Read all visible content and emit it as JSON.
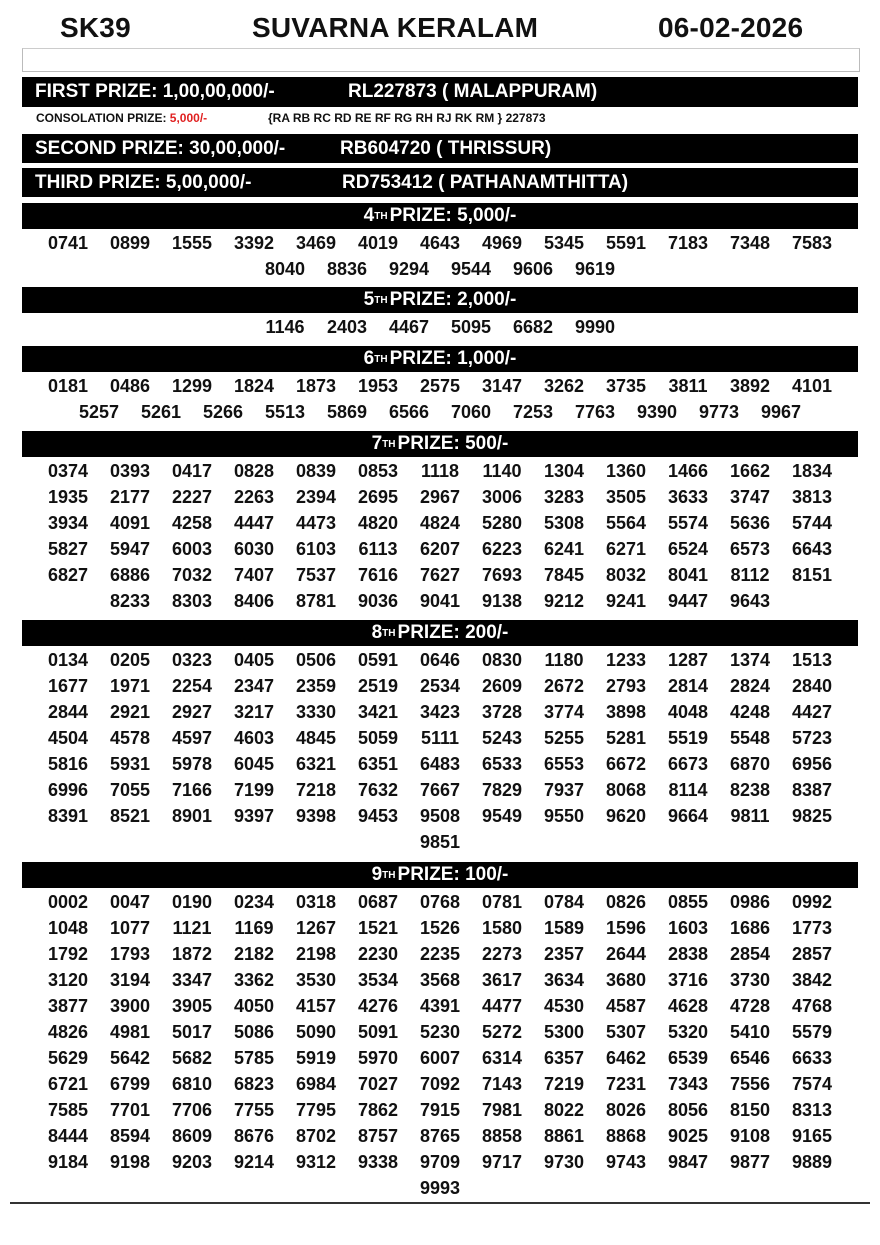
{
  "header": {
    "code": "SK39",
    "title": "SUVARNA KERALAM",
    "date": "06-02-2026"
  },
  "first_prize": {
    "label": "FIRST PRIZE: 1,00,00,000/-",
    "winner": "RL227873 ( MALAPPURAM)"
  },
  "consolation": {
    "label": "CONSOLATION PRIZE:",
    "amount": "5,000/-",
    "series": "{RA RB RC RD RE RF RG RH RJ RK RM } 227873",
    "amount_color": "#e02020"
  },
  "second_prize": {
    "label": "SECOND PRIZE: 30,00,000/-",
    "winner": "RB604720 ( THRISSUR)"
  },
  "third_prize": {
    "label": "THIRD PRIZE: 5,00,000/-",
    "winner": "RD753412 ( PATHANAMTHITTA)"
  },
  "prizes": [
    {
      "ordinal": "4",
      "suffix": "TH",
      "label": "PRIZE: 5,000/-",
      "numbers": [
        "0741",
        "0899",
        "1555",
        "3392",
        "3469",
        "4019",
        "4643",
        "4969",
        "5345",
        "5591",
        "7183",
        "7348",
        "7583",
        "8040",
        "8836",
        "9294",
        "9544",
        "9606",
        "9619"
      ]
    },
    {
      "ordinal": "5",
      "suffix": "TH",
      "label": "PRIZE: 2,000/-",
      "numbers": [
        "1146",
        "2403",
        "4467",
        "5095",
        "6682",
        "9990"
      ]
    },
    {
      "ordinal": "6",
      "suffix": "TH",
      "label": "PRIZE: 1,000/-",
      "numbers": [
        "0181",
        "0486",
        "1299",
        "1824",
        "1873",
        "1953",
        "2575",
        "3147",
        "3262",
        "3735",
        "3811",
        "3892",
        "4101",
        "5257",
        "5261",
        "5266",
        "5513",
        "5869",
        "6566",
        "7060",
        "7253",
        "7763",
        "9390",
        "9773",
        "9967"
      ]
    },
    {
      "ordinal": "7",
      "suffix": "TH",
      "label": "PRIZE: 500/-",
      "numbers": [
        "0374",
        "0393",
        "0417",
        "0828",
        "0839",
        "0853",
        "1118",
        "1140",
        "1304",
        "1360",
        "1466",
        "1662",
        "1834",
        "1935",
        "2177",
        "2227",
        "2263",
        "2394",
        "2695",
        "2967",
        "3006",
        "3283",
        "3505",
        "3633",
        "3747",
        "3813",
        "3934",
        "4091",
        "4258",
        "4447",
        "4473",
        "4820",
        "4824",
        "5280",
        "5308",
        "5564",
        "5574",
        "5636",
        "5744",
        "5827",
        "5947",
        "6003",
        "6030",
        "6103",
        "6113",
        "6207",
        "6223",
        "6241",
        "6271",
        "6524",
        "6573",
        "6643",
        "6827",
        "6886",
        "7032",
        "7407",
        "7537",
        "7616",
        "7627",
        "7693",
        "7845",
        "8032",
        "8041",
        "8112",
        "8151",
        "8233",
        "8303",
        "8406",
        "8781",
        "9036",
        "9041",
        "9138",
        "9212",
        "9241",
        "9447",
        "9643"
      ]
    },
    {
      "ordinal": "8",
      "suffix": "TH",
      "label": "PRIZE: 200/-",
      "numbers": [
        "0134",
        "0205",
        "0323",
        "0405",
        "0506",
        "0591",
        "0646",
        "0830",
        "1180",
        "1233",
        "1287",
        "1374",
        "1513",
        "1677",
        "1971",
        "2254",
        "2347",
        "2359",
        "2519",
        "2534",
        "2609",
        "2672",
        "2793",
        "2814",
        "2824",
        "2840",
        "2844",
        "2921",
        "2927",
        "3217",
        "3330",
        "3421",
        "3423",
        "3728",
        "3774",
        "3898",
        "4048",
        "4248",
        "4427",
        "4504",
        "4578",
        "4597",
        "4603",
        "4845",
        "5059",
        "5111",
        "5243",
        "5255",
        "5281",
        "5519",
        "5548",
        "5723",
        "5816",
        "5931",
        "5978",
        "6045",
        "6321",
        "6351",
        "6483",
        "6533",
        "6553",
        "6672",
        "6673",
        "6870",
        "6956",
        "6996",
        "7055",
        "7166",
        "7199",
        "7218",
        "7632",
        "7667",
        "7829",
        "7937",
        "8068",
        "8114",
        "8238",
        "8387",
        "8391",
        "8521",
        "8901",
        "9397",
        "9398",
        "9453",
        "9508",
        "9549",
        "9550",
        "9620",
        "9664",
        "9811",
        "9825",
        "9851"
      ]
    },
    {
      "ordinal": "9",
      "suffix": "TH",
      "label": "PRIZE: 100/-",
      "numbers": [
        "0002",
        "0047",
        "0190",
        "0234",
        "0318",
        "0687",
        "0768",
        "0781",
        "0784",
        "0826",
        "0855",
        "0986",
        "0992",
        "1048",
        "1077",
        "1121",
        "1169",
        "1267",
        "1521",
        "1526",
        "1580",
        "1589",
        "1596",
        "1603",
        "1686",
        "1773",
        "1792",
        "1793",
        "1872",
        "2182",
        "2198",
        "2230",
        "2235",
        "2273",
        "2357",
        "2644",
        "2838",
        "2854",
        "2857",
        "3120",
        "3194",
        "3347",
        "3362",
        "3530",
        "3534",
        "3568",
        "3617",
        "3634",
        "3680",
        "3716",
        "3730",
        "3842",
        "3877",
        "3900",
        "3905",
        "4050",
        "4157",
        "4276",
        "4391",
        "4477",
        "4530",
        "4587",
        "4628",
        "4728",
        "4768",
        "4826",
        "4981",
        "5017",
        "5086",
        "5090",
        "5091",
        "5230",
        "5272",
        "5300",
        "5307",
        "5320",
        "5410",
        "5579",
        "5629",
        "5642",
        "5682",
        "5785",
        "5919",
        "5970",
        "6007",
        "6314",
        "6357",
        "6462",
        "6539",
        "6546",
        "6633",
        "6721",
        "6799",
        "6810",
        "6823",
        "6984",
        "7027",
        "7092",
        "7143",
        "7219",
        "7231",
        "7343",
        "7556",
        "7574",
        "7585",
        "7701",
        "7706",
        "7755",
        "7795",
        "7862",
        "7915",
        "7981",
        "8022",
        "8026",
        "8056",
        "8150",
        "8313",
        "8444",
        "8594",
        "8609",
        "8676",
        "8702",
        "8757",
        "8765",
        "8858",
        "8861",
        "8868",
        "9025",
        "9108",
        "9165",
        "9184",
        "9198",
        "9203",
        "9214",
        "9312",
        "9338",
        "9709",
        "9717",
        "9730",
        "9743",
        "9847",
        "9877",
        "9889",
        "9993"
      ]
    }
  ]
}
